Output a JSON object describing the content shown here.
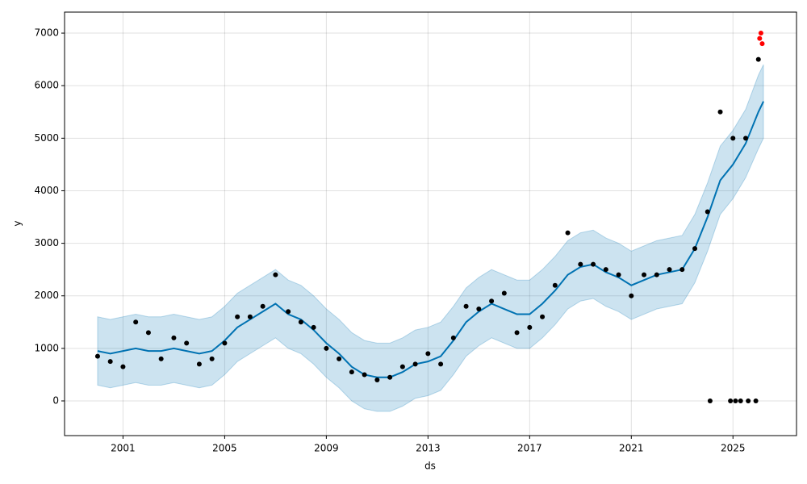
{
  "chart_data": {
    "type": "forecast",
    "xlabel": "ds",
    "ylabel": "y",
    "xlim": [
      1998.7,
      2027.5
    ],
    "xticks": [
      2001,
      2005,
      2009,
      2013,
      2017,
      2021,
      2025
    ],
    "ylim": [
      -660,
      7400
    ],
    "yticks": [
      0,
      1000,
      2000,
      3000,
      4000,
      5000,
      6000,
      7000
    ],
    "grid": true,
    "series": [
      {
        "mark": "band",
        "color": "#0072B2",
        "x": [
          2000.0,
          2000.5,
          2001.0,
          2001.5,
          2002.0,
          2002.5,
          2003.0,
          2003.5,
          2004.0,
          2004.5,
          2005.0,
          2005.5,
          2006.0,
          2006.5,
          2007.0,
          2007.5,
          2008.0,
          2008.5,
          2009.0,
          2009.5,
          2010.0,
          2010.5,
          2011.0,
          2011.5,
          2012.0,
          2012.5,
          2013.0,
          2013.5,
          2014.0,
          2014.5,
          2015.0,
          2015.5,
          2016.0,
          2016.5,
          2017.0,
          2017.5,
          2018.0,
          2018.5,
          2019.0,
          2019.5,
          2020.0,
          2020.5,
          2021.0,
          2021.5,
          2022.0,
          2022.5,
          2023.0,
          2023.5,
          2024.0,
          2024.5,
          2025.0,
          2025.5,
          2026.0,
          2026.2
        ],
        "lower": [
          300,
          250,
          300,
          350,
          300,
          300,
          350,
          300,
          250,
          300,
          500,
          750,
          900,
          1050,
          1200,
          1000,
          900,
          700,
          450,
          250,
          0,
          -150,
          -200,
          -200,
          -100,
          50,
          100,
          200,
          500,
          850,
          1050,
          1200,
          1100,
          1000,
          1000,
          1200,
          1450,
          1750,
          1900,
          1950,
          1800,
          1700,
          1550,
          1650,
          1750,
          1800,
          1850,
          2250,
          2850,
          3550,
          3850,
          4250,
          4800,
          5000
        ],
        "upper": [
          1600,
          1550,
          1600,
          1650,
          1600,
          1600,
          1650,
          1600,
          1550,
          1600,
          1800,
          2050,
          2200,
          2350,
          2500,
          2300,
          2200,
          2000,
          1750,
          1550,
          1300,
          1150,
          1100,
          1100,
          1200,
          1350,
          1400,
          1500,
          1800,
          2150,
          2350,
          2500,
          2400,
          2300,
          2300,
          2500,
          2750,
          3050,
          3200,
          3250,
          3100,
          3000,
          2850,
          2950,
          3050,
          3100,
          3150,
          3550,
          4150,
          4850,
          5150,
          5550,
          6200,
          6400
        ]
      },
      {
        "mark": "line",
        "color": "#0072B2",
        "x": [
          2000.0,
          2000.5,
          2001.0,
          2001.5,
          2002.0,
          2002.5,
          2003.0,
          2003.5,
          2004.0,
          2004.5,
          2005.0,
          2005.5,
          2006.0,
          2006.5,
          2007.0,
          2007.5,
          2008.0,
          2008.5,
          2009.0,
          2009.5,
          2010.0,
          2010.5,
          2011.0,
          2011.5,
          2012.0,
          2012.5,
          2013.0,
          2013.5,
          2014.0,
          2014.5,
          2015.0,
          2015.5,
          2016.0,
          2016.5,
          2017.0,
          2017.5,
          2018.0,
          2018.5,
          2019.0,
          2019.5,
          2020.0,
          2020.5,
          2021.0,
          2021.5,
          2022.0,
          2022.5,
          2023.0,
          2023.5,
          2024.0,
          2024.5,
          2025.0,
          2025.5,
          2026.0,
          2026.2
        ],
        "values": [
          950,
          900,
          950,
          1000,
          950,
          950,
          1000,
          950,
          900,
          950,
          1150,
          1400,
          1550,
          1700,
          1850,
          1650,
          1550,
          1350,
          1100,
          900,
          650,
          500,
          450,
          450,
          550,
          700,
          750,
          850,
          1150,
          1500,
          1700,
          1850,
          1750,
          1650,
          1650,
          1850,
          2100,
          2400,
          2550,
          2600,
          2450,
          2350,
          2200,
          2300,
          2400,
          2450,
          2500,
          2900,
          3500,
          4200,
          4500,
          4900,
          5500,
          5700
        ]
      },
      {
        "mark": "scatter",
        "color": "#000000",
        "x": [
          2000.0,
          2000.5,
          2001.0,
          2001.5,
          2002.0,
          2002.5,
          2003.0,
          2003.5,
          2004.0,
          2004.5,
          2005.0,
          2005.5,
          2006.0,
          2006.5,
          2007.0,
          2007.5,
          2008.0,
          2008.5,
          2009.0,
          2009.5,
          2010.0,
          2010.5,
          2011.0,
          2011.5,
          2012.0,
          2012.5,
          2013.0,
          2013.5,
          2014.0,
          2014.5,
          2015.0,
          2015.5,
          2016.0,
          2016.5,
          2017.0,
          2017.5,
          2018.0,
          2018.5,
          2019.0,
          2019.5,
          2020.0,
          2020.5,
          2021.0,
          2021.5,
          2022.0,
          2022.5,
          2023.0,
          2023.5,
          2024.0,
          2024.5,
          2025.0,
          2025.5,
          2026.0,
          2024.1,
          2024.9,
          2025.1,
          2025.3,
          2025.6,
          2025.9
        ],
        "values": [
          850,
          750,
          650,
          1500,
          1300,
          800,
          1200,
          1100,
          700,
          800,
          1100,
          1600,
          1600,
          1800,
          2400,
          1700,
          1500,
          1400,
          1000,
          800,
          550,
          500,
          400,
          450,
          650,
          700,
          900,
          700,
          1200,
          1800,
          1750,
          1900,
          2050,
          1300,
          1400,
          1600,
          2200,
          3200,
          2600,
          2600,
          2500,
          2400,
          2000,
          2400,
          2400,
          2500,
          2500,
          2900,
          3600,
          5500,
          5000,
          5000,
          6500,
          0,
          0,
          0,
          0,
          0,
          0
        ]
      },
      {
        "mark": "scatter",
        "color": "#ff0000",
        "x": [
          2026.05,
          2026.1,
          2026.15
        ],
        "values": [
          6900,
          7000,
          6800
        ]
      }
    ]
  }
}
